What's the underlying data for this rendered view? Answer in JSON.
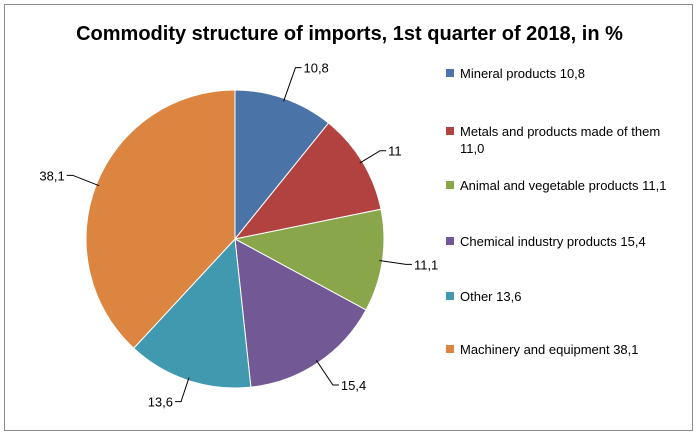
{
  "chart_data": {
    "type": "pie",
    "title": "Commodity structure of imports, 1st quarter of 2018, in %",
    "slices": [
      {
        "legend": "Mineral products 10,8",
        "value": 10.8,
        "data_label": "10,8",
        "color": "#4a73a8"
      },
      {
        "legend": "Metals and products made of them 11,0",
        "value": 11.0,
        "data_label": "11",
        "color": "#b14240"
      },
      {
        "legend": "Animal and vegetable products 11,1",
        "value": 11.1,
        "data_label": "11,1",
        "color": "#89a64a"
      },
      {
        "legend": "Chemical industry products 15,4",
        "value": 15.4,
        "data_label": "15,4",
        "color": "#725895"
      },
      {
        "legend": "Other 13,6",
        "value": 13.6,
        "data_label": "13,6",
        "color": "#4199af"
      },
      {
        "legend": "Machinery and equipment 38,1",
        "value": 38.1,
        "data_label": "38,1",
        "color": "#db8540"
      }
    ],
    "legend_position": "right"
  }
}
